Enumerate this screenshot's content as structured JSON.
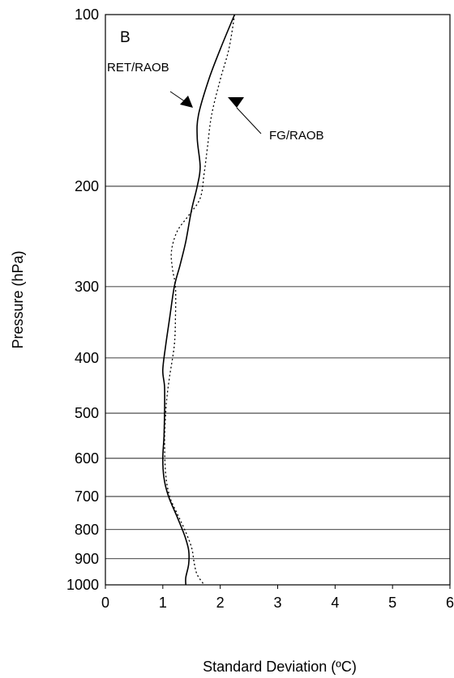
{
  "chart_data": {
    "type": "line",
    "panel_label": "B",
    "xlabel": "Standard Deviation (ºC)",
    "ylabel": "Pressure (hPa)",
    "xlim": [
      0,
      6
    ],
    "ylim": [
      1000,
      100
    ],
    "y_scale": "log",
    "x_ticks": [
      "0",
      "1",
      "2",
      "3",
      "4",
      "5",
      "6"
    ],
    "y_ticks": [
      "100",
      "200",
      "300",
      "400",
      "500",
      "600",
      "700",
      "800",
      "900",
      "1000"
    ],
    "grid": "horizontal",
    "series": [
      {
        "name": "RET/RAOB",
        "style": "solid",
        "color": "#000000",
        "points": [
          [
            2.25,
            100
          ],
          [
            2.0,
            115
          ],
          [
            1.8,
            130
          ],
          [
            1.62,
            150
          ],
          [
            1.6,
            165
          ],
          [
            1.65,
            185
          ],
          [
            1.6,
            200
          ],
          [
            1.5,
            220
          ],
          [
            1.4,
            250
          ],
          [
            1.3,
            275
          ],
          [
            1.2,
            300
          ],
          [
            1.12,
            340
          ],
          [
            1.05,
            380
          ],
          [
            1.0,
            420
          ],
          [
            1.03,
            450
          ],
          [
            1.03,
            500
          ],
          [
            1.02,
            550
          ],
          [
            1.0,
            600
          ],
          [
            1.02,
            650
          ],
          [
            1.1,
            700
          ],
          [
            1.25,
            760
          ],
          [
            1.38,
            820
          ],
          [
            1.45,
            870
          ],
          [
            1.45,
            920
          ],
          [
            1.4,
            970
          ],
          [
            1.4,
            1000
          ]
        ]
      },
      {
        "name": "FG/RAOB",
        "style": "dotted",
        "color": "#000000",
        "points": [
          [
            2.25,
            100
          ],
          [
            2.15,
            115
          ],
          [
            2.0,
            130
          ],
          [
            1.85,
            150
          ],
          [
            1.78,
            170
          ],
          [
            1.72,
            190
          ],
          [
            1.65,
            210
          ],
          [
            1.45,
            225
          ],
          [
            1.25,
            240
          ],
          [
            1.15,
            260
          ],
          [
            1.17,
            280
          ],
          [
            1.22,
            300
          ],
          [
            1.22,
            340
          ],
          [
            1.2,
            380
          ],
          [
            1.12,
            430
          ],
          [
            1.07,
            470
          ],
          [
            1.05,
            500
          ],
          [
            1.03,
            560
          ],
          [
            1.05,
            640
          ],
          [
            1.12,
            700
          ],
          [
            1.25,
            750
          ],
          [
            1.38,
            800
          ],
          [
            1.5,
            860
          ],
          [
            1.55,
            920
          ],
          [
            1.6,
            960
          ],
          [
            1.72,
            1000
          ]
        ]
      }
    ],
    "annotations": [
      {
        "text": "RET/RAOB",
        "arrow": "up-right"
      },
      {
        "text": "FG/RAOB",
        "arrow": "down"
      }
    ]
  }
}
